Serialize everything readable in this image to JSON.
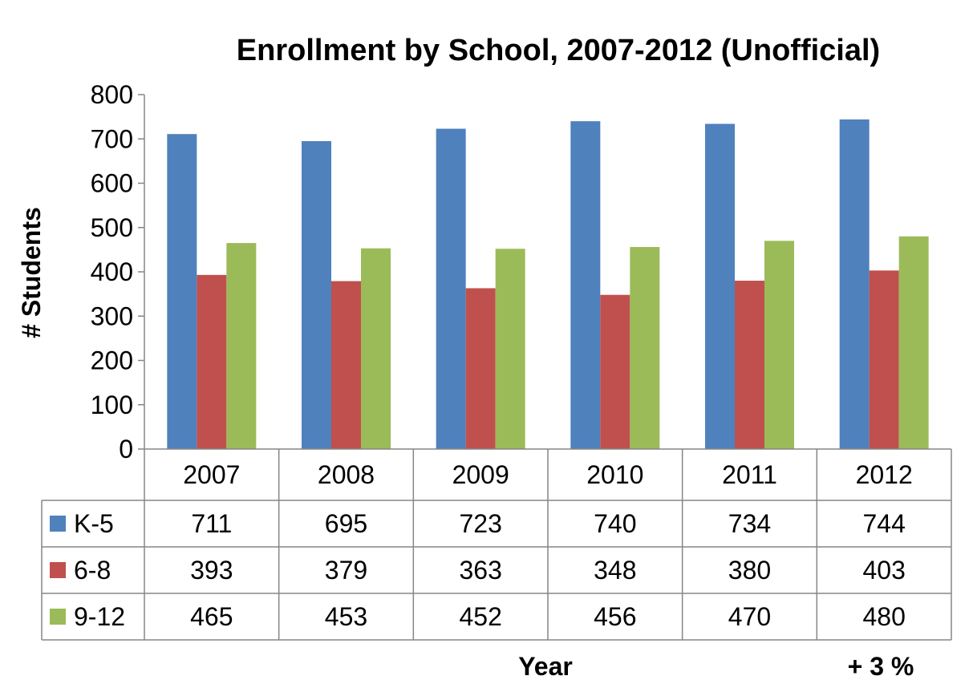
{
  "chart_data": {
    "type": "bar",
    "title": "Enrollment by School, 2007-2012 (Unofficial)",
    "xlabel": "Year",
    "ylabel": "# Students",
    "ylim": [
      0,
      800
    ],
    "yticks": [
      0,
      100,
      200,
      300,
      400,
      500,
      600,
      700,
      800
    ],
    "categories": [
      "2007",
      "2008",
      "2009",
      "2010",
      "2011",
      "2012"
    ],
    "series": [
      {
        "name": "K-5",
        "color": "#4F81BD",
        "values": [
          711,
          695,
          723,
          740,
          734,
          744
        ]
      },
      {
        "name": "6-8",
        "color": "#C0504D",
        "values": [
          393,
          379,
          363,
          348,
          380,
          403
        ]
      },
      {
        "name": "9-12",
        "color": "#9BBB59",
        "values": [
          465,
          453,
          452,
          456,
          470,
          480
        ]
      }
    ],
    "grid": false,
    "legend": "data-table-left",
    "annotation": "+ 3 %"
  }
}
